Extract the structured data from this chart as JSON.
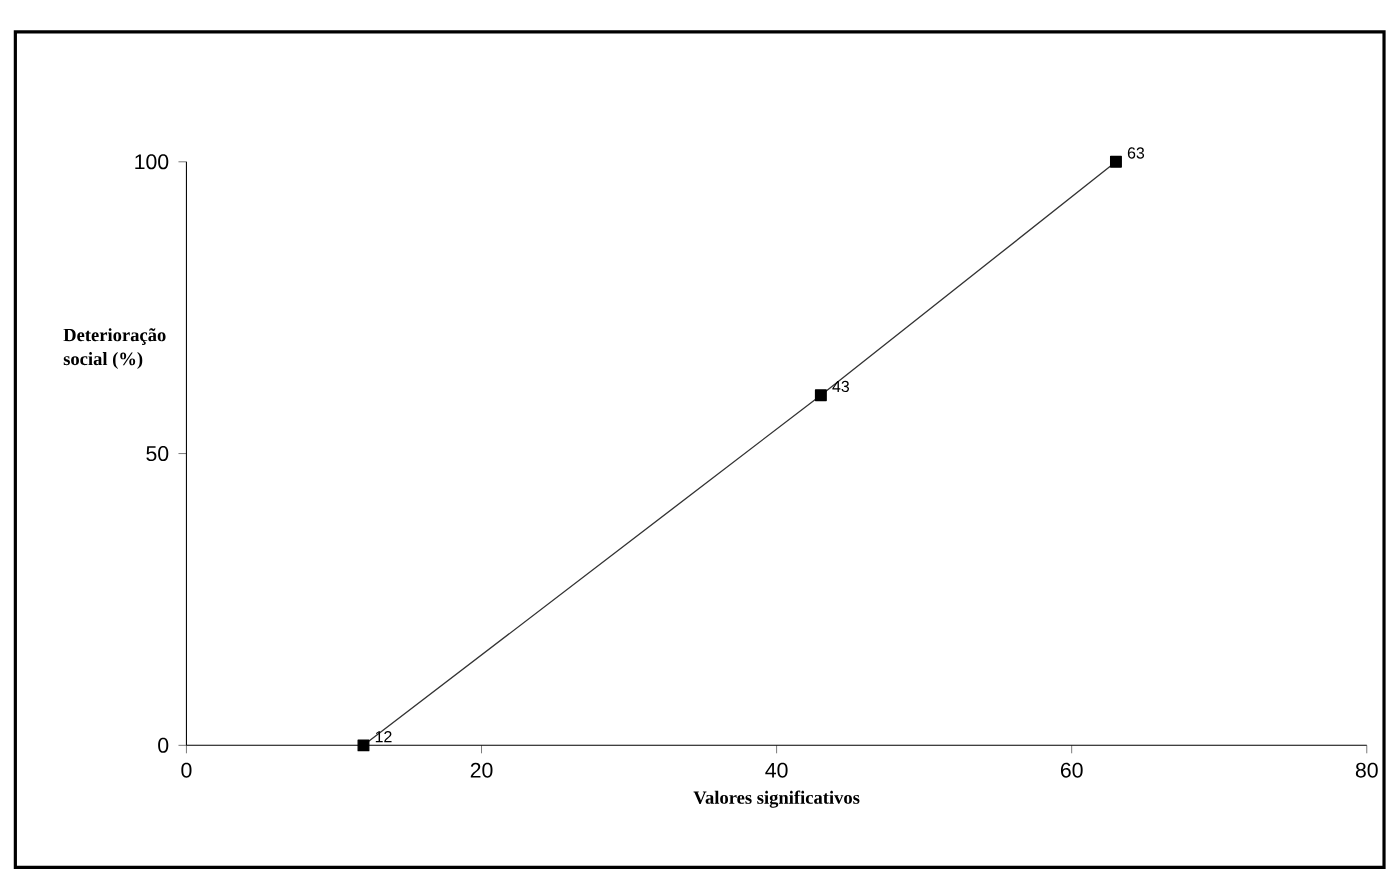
{
  "chart_data": {
    "type": "line",
    "xlabel": "Valores significativos",
    "ylabel": "Deterioração social (%)",
    "x": [
      12,
      43,
      63
    ],
    "values": [
      0,
      60,
      100
    ],
    "annotations": [
      {
        "text": "12",
        "x": 12,
        "y": 0
      },
      {
        "text": "43",
        "x": 43,
        "y": 60
      },
      {
        "text": "63",
        "x": 63,
        "y": 100
      }
    ],
    "color": "#333333",
    "marker": "square",
    "line_style": "solid",
    "grid": false,
    "xlim": [
      0,
      80
    ],
    "xticks": [
      0,
      20,
      40,
      60,
      80
    ],
    "ylim": [
      0,
      100
    ],
    "yticks": [
      0,
      50,
      100
    ]
  }
}
